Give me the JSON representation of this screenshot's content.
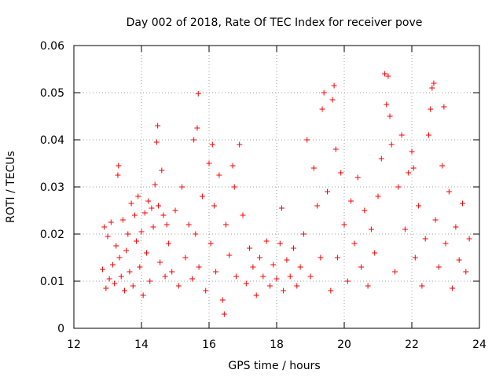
{
  "chart_data": {
    "type": "scatter",
    "title": "Day 002 of 2018, Rate Of TEC Index for receiver pove",
    "xlabel": "GPS time / hours",
    "ylabel": "ROTI / TECUs",
    "xlim": [
      12,
      24
    ],
    "ylim": [
      0,
      0.06
    ],
    "xticks": [
      "12",
      "14",
      "16",
      "18",
      "20",
      "22",
      "24"
    ],
    "yticks": [
      "0",
      "0.01",
      "0.02",
      "0.03",
      "0.04",
      "0.05",
      "0.06"
    ],
    "grid": true,
    "marker": "+",
    "color": "#ff0000",
    "series": [
      {
        "name": "ROTI",
        "points": [
          [
            12.85,
            0.0125
          ],
          [
            12.9,
            0.0215
          ],
          [
            12.95,
            0.0085
          ],
          [
            13.0,
            0.0195
          ],
          [
            13.05,
            0.0105
          ],
          [
            13.1,
            0.0225
          ],
          [
            13.15,
            0.0135
          ],
          [
            13.2,
            0.0095
          ],
          [
            13.25,
            0.0175
          ],
          [
            13.3,
            0.0325
          ],
          [
            13.32,
            0.0345
          ],
          [
            13.35,
            0.015
          ],
          [
            13.4,
            0.011
          ],
          [
            13.45,
            0.023
          ],
          [
            13.5,
            0.008
          ],
          [
            13.55,
            0.0165
          ],
          [
            13.6,
            0.02
          ],
          [
            13.65,
            0.012
          ],
          [
            13.7,
            0.0265
          ],
          [
            13.75,
            0.009
          ],
          [
            13.8,
            0.024
          ],
          [
            13.85,
            0.0185
          ],
          [
            13.9,
            0.028
          ],
          [
            13.95,
            0.013
          ],
          [
            14.0,
            0.0205
          ],
          [
            14.05,
            0.007
          ],
          [
            14.1,
            0.0245
          ],
          [
            14.15,
            0.016
          ],
          [
            14.2,
            0.027
          ],
          [
            14.25,
            0.01
          ],
          [
            14.3,
            0.0255
          ],
          [
            14.35,
            0.0215
          ],
          [
            14.4,
            0.0305
          ],
          [
            14.45,
            0.0395
          ],
          [
            14.48,
            0.043
          ],
          [
            14.5,
            0.026
          ],
          [
            14.55,
            0.014
          ],
          [
            14.6,
            0.0335
          ],
          [
            14.65,
            0.024
          ],
          [
            14.7,
            0.011
          ],
          [
            14.75,
            0.022
          ],
          [
            14.8,
            0.018
          ],
          [
            14.9,
            0.012
          ],
          [
            15.0,
            0.025
          ],
          [
            15.1,
            0.009
          ],
          [
            15.2,
            0.03
          ],
          [
            15.3,
            0.015
          ],
          [
            15.4,
            0.022
          ],
          [
            15.5,
            0.0105
          ],
          [
            15.55,
            0.04
          ],
          [
            15.6,
            0.02
          ],
          [
            15.65,
            0.0425
          ],
          [
            15.68,
            0.0498
          ],
          [
            15.7,
            0.013
          ],
          [
            15.8,
            0.028
          ],
          [
            15.9,
            0.008
          ],
          [
            16.0,
            0.035
          ],
          [
            16.05,
            0.018
          ],
          [
            16.1,
            0.039
          ],
          [
            16.15,
            0.026
          ],
          [
            16.2,
            0.012
          ],
          [
            16.3,
            0.0325
          ],
          [
            16.4,
            0.006
          ],
          [
            16.45,
            0.003
          ],
          [
            16.5,
            0.022
          ],
          [
            16.6,
            0.0155
          ],
          [
            16.7,
            0.0345
          ],
          [
            16.75,
            0.03
          ],
          [
            16.8,
            0.011
          ],
          [
            16.9,
            0.039
          ],
          [
            17.0,
            0.024
          ],
          [
            17.1,
            0.0095
          ],
          [
            17.2,
            0.017
          ],
          [
            17.3,
            0.013
          ],
          [
            17.4,
            0.007
          ],
          [
            17.5,
            0.015
          ],
          [
            17.6,
            0.011
          ],
          [
            17.7,
            0.0185
          ],
          [
            17.8,
            0.009
          ],
          [
            17.9,
            0.0135
          ],
          [
            18.0,
            0.0105
          ],
          [
            18.1,
            0.018
          ],
          [
            18.15,
            0.0255
          ],
          [
            18.2,
            0.008
          ],
          [
            18.3,
            0.0145
          ],
          [
            18.4,
            0.011
          ],
          [
            18.5,
            0.017
          ],
          [
            18.6,
            0.009
          ],
          [
            18.7,
            0.013
          ],
          [
            18.8,
            0.02
          ],
          [
            18.9,
            0.04
          ],
          [
            19.0,
            0.011
          ],
          [
            19.1,
            0.034
          ],
          [
            19.2,
            0.026
          ],
          [
            19.3,
            0.015
          ],
          [
            19.35,
            0.0465
          ],
          [
            19.4,
            0.05
          ],
          [
            19.5,
            0.029
          ],
          [
            19.6,
            0.008
          ],
          [
            19.65,
            0.0485
          ],
          [
            19.7,
            0.0515
          ],
          [
            19.75,
            0.038
          ],
          [
            19.8,
            0.015
          ],
          [
            19.9,
            0.033
          ],
          [
            20.0,
            0.022
          ],
          [
            20.1,
            0.01
          ],
          [
            20.2,
            0.027
          ],
          [
            20.3,
            0.018
          ],
          [
            20.4,
            0.032
          ],
          [
            20.5,
            0.013
          ],
          [
            20.6,
            0.025
          ],
          [
            20.7,
            0.009
          ],
          [
            20.8,
            0.021
          ],
          [
            20.9,
            0.016
          ],
          [
            21.0,
            0.028
          ],
          [
            21.1,
            0.036
          ],
          [
            21.2,
            0.054
          ],
          [
            21.25,
            0.0475
          ],
          [
            21.3,
            0.0535
          ],
          [
            21.35,
            0.045
          ],
          [
            21.4,
            0.039
          ],
          [
            21.5,
            0.012
          ],
          [
            21.6,
            0.03
          ],
          [
            21.7,
            0.041
          ],
          [
            21.8,
            0.021
          ],
          [
            21.9,
            0.033
          ],
          [
            22.0,
            0.0375
          ],
          [
            22.05,
            0.034
          ],
          [
            22.1,
            0.015
          ],
          [
            22.2,
            0.026
          ],
          [
            22.3,
            0.009
          ],
          [
            22.4,
            0.019
          ],
          [
            22.5,
            0.041
          ],
          [
            22.55,
            0.0465
          ],
          [
            22.6,
            0.051
          ],
          [
            22.65,
            0.052
          ],
          [
            22.7,
            0.023
          ],
          [
            22.8,
            0.013
          ],
          [
            22.9,
            0.0345
          ],
          [
            22.95,
            0.047
          ],
          [
            23.0,
            0.018
          ],
          [
            23.1,
            0.029
          ],
          [
            23.2,
            0.0085
          ],
          [
            23.3,
            0.0215
          ],
          [
            23.4,
            0.0145
          ],
          [
            23.5,
            0.0265
          ],
          [
            23.6,
            0.012
          ],
          [
            23.7,
            0.019
          ]
        ]
      }
    ]
  }
}
